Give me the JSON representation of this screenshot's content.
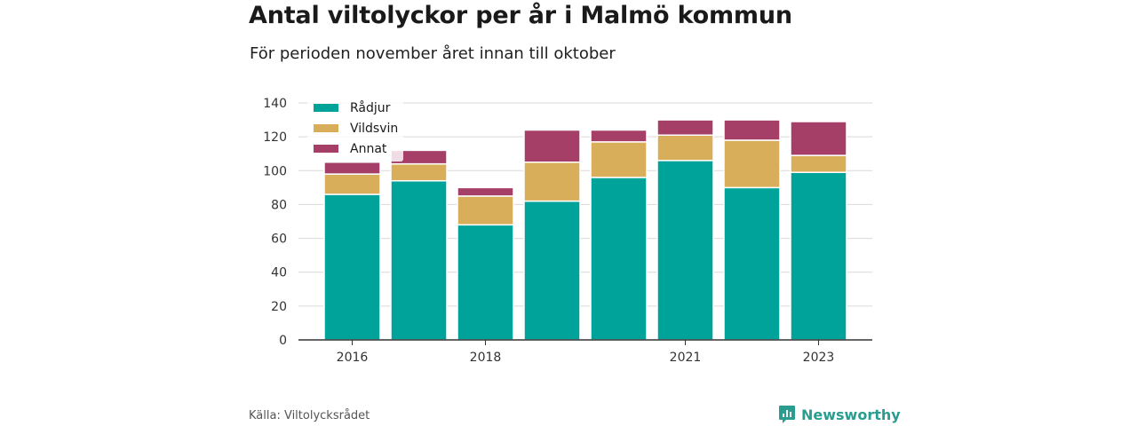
{
  "header": {
    "title": "Antal viltolyckor per år i Malmö kommun",
    "subtitle": "För perioden november året innan till oktober"
  },
  "footer": {
    "source": "Källa: Viltolycksrådet",
    "brand": "Newsworthy"
  },
  "colors": {
    "radjur": "#00a399",
    "vildsvin": "#d9ae5b",
    "annat": "#a63f68",
    "brand": "#2a9d8f"
  },
  "chart_data": {
    "type": "bar",
    "stacked": true,
    "categories": [
      "2016",
      "2017",
      "2018",
      "2019",
      "2020",
      "2021",
      "2022",
      "2023"
    ],
    "x_tick_labels": [
      "2016",
      "",
      "2018",
      "",
      "",
      "2021",
      "",
      "2023"
    ],
    "series": [
      {
        "name": "Rådjur",
        "color": "#00a399",
        "values": [
          86,
          94,
          68,
          82,
          96,
          106,
          90,
          99
        ]
      },
      {
        "name": "Vildsvin",
        "color": "#d9ae5b",
        "values": [
          12,
          10,
          17,
          23,
          21,
          15,
          28,
          10
        ]
      },
      {
        "name": "Annat",
        "color": "#a63f68",
        "values": [
          7,
          8,
          5,
          19,
          7,
          9,
          12,
          20
        ]
      }
    ],
    "ylim": [
      0,
      140
    ],
    "yticks": [
      0,
      20,
      40,
      60,
      80,
      100,
      120,
      140
    ],
    "grid": true,
    "legend_position": "top-left"
  }
}
